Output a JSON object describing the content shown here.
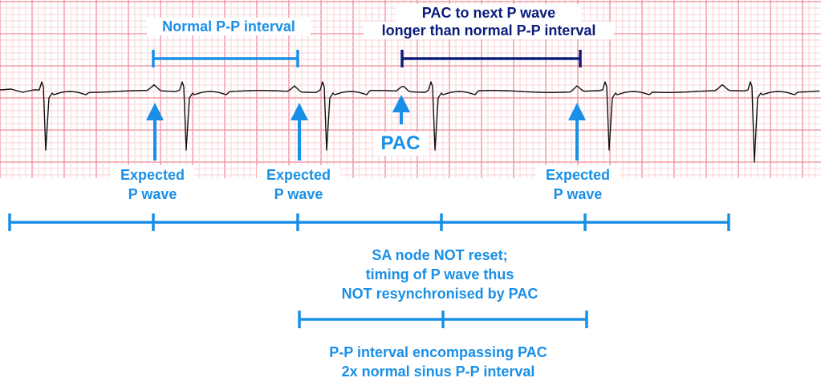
{
  "colors": {
    "grid_minor": "#f9c9cf",
    "grid_major": "#f08c98",
    "trace": "#111111",
    "accent_light": "#1a8fe6",
    "accent_dark": "#0b1c7a",
    "background": "#ffffff"
  },
  "labels": {
    "normal_pp": "Normal P-P interval",
    "pac_next_line1": "PAC to next P wave",
    "pac_next_line2": "longer than normal P-P interval",
    "pac": "PAC",
    "expected_line1": "Expected",
    "expected_line2": "P wave",
    "sa_line1": "SA node NOT reset;",
    "sa_line2": "timing of P wave thus",
    "sa_line3": "NOT resynchronised by PAC",
    "encompass_line1": "P-P interval encompassing PAC",
    "encompass_line2": "2x normal sinus P-P interval"
  }
}
